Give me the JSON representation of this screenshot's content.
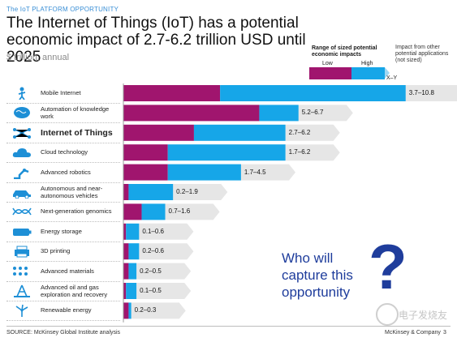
{
  "kicker": "The IoT PLATFORM OPPORTUNITY",
  "title": "The Internet of Things (IoT) has a potential economic impact of 2.7-6.2 trillion USD until 2025",
  "subtitle": "$ trillion, annual",
  "legend": {
    "title": "Range of sized potential economic impacts",
    "low": "Low",
    "high": "High",
    "other": "Impact from other potential applications (not sized)",
    "xy": "X–Y",
    "colors": {
      "low": "#a0156e",
      "high": "#16a6e8",
      "other": "#e6e6e6"
    }
  },
  "chart_data": {
    "type": "bar",
    "orientation": "horizontal",
    "stacked": true,
    "categories": [
      "Mobile Internet",
      "Automation of knowledge work",
      "Internet of Things",
      "Cloud technology",
      "Advanced robotics",
      "Autonomous and near-autonomous vehicles",
      "Next-generation genomics",
      "Energy storage",
      "3D printing",
      "Advanced materials",
      "Advanced oil and gas exploration and recovery",
      "Renewable energy"
    ],
    "value_labels": [
      "3.7–10.8",
      "5.2–6.7",
      "2.7–6.2",
      "1.7–6.2",
      "1.7–4.5",
      "0.2–1.9",
      "0.7–1.6",
      "0.1–0.6",
      "0.2–0.6",
      "0.2–0.5",
      "0.1–0.5",
      "0.2–0.3"
    ],
    "low": [
      3.7,
      5.2,
      2.7,
      1.7,
      1.7,
      0.2,
      0.7,
      0.1,
      0.2,
      0.2,
      0.1,
      0.2
    ],
    "high": [
      10.8,
      6.7,
      6.2,
      6.2,
      4.5,
      1.9,
      1.6,
      0.6,
      0.6,
      0.5,
      0.5,
      0.3
    ],
    "highlight_index": 2,
    "icons": [
      "person-phone-icon",
      "brain-icon",
      "network-icon",
      "cloud-icon",
      "robot-arm-icon",
      "car-icon",
      "dna-icon",
      "battery-icon",
      "printer-icon",
      "lattice-icon",
      "oil-rig-icon",
      "wind-turbine-icon"
    ],
    "xlim": [
      0,
      11.5
    ]
  },
  "cta": "Who will capture this opportunity",
  "qmark": "?",
  "source": "SOURCE: McKinsey Global Institute analysis",
  "company": "McKinsey & Company",
  "page": "3",
  "watermark": "电子发烧友"
}
